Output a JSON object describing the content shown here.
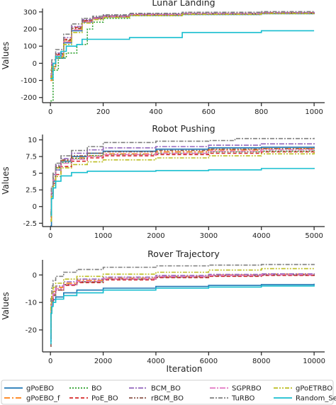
{
  "xlabel": "Iteration",
  "colors": {
    "gPoEBO": "#1f77b4",
    "gPoEBO_f": "#ff7f0e",
    "BO": "#2ca02c",
    "PoE_BO": "#d62728",
    "BCM_BO": "#9467bd",
    "rBCM_BO": "#8c564b",
    "SGPRBO": "#e377c2",
    "TuRBO": "#7f7f7f",
    "gPoETRBO": "#bcbd22",
    "Random_Search": "#17becf"
  },
  "legend": {
    "columns": [
      [
        "gPoEBO",
        "gPoEBO_f"
      ],
      [
        "BO",
        "PoE_BO"
      ],
      [
        "BCM_BO",
        "rBCM_BO"
      ],
      [
        "SGPRBO",
        "TuRBO"
      ],
      [
        "gPoETRBO",
        "Random_Search"
      ]
    ],
    "dash": {
      "gPoEBO": "",
      "gPoEBO_f": "8,3,2,3",
      "BO": "2,2",
      "PoE_BO": "5,3",
      "BCM_BO": "7,2,2,2",
      "rBCM_BO": "5,2,2,2,2,2",
      "SGPRBO": "8,2,2,2",
      "TuRBO": "6,2,2,2",
      "gPoETRBO": "6,2,2,2,2,2",
      "Random_Search": ""
    }
  },
  "chart_data": [
    {
      "type": "line",
      "title": "Lunar Landing",
      "xlabel": "",
      "ylabel": "Values",
      "xlim": [
        -30,
        1040
      ],
      "ylim": [
        -230,
        320
      ],
      "xticks": [
        0,
        200,
        400,
        600,
        800,
        1000
      ],
      "yticks": [
        -200,
        -100,
        0,
        100,
        200,
        300
      ],
      "series": [
        {
          "name": "gPoEBO",
          "x": [
            0,
            5,
            20,
            50,
            80,
            120,
            160,
            200,
            300,
            500,
            800,
            1000
          ],
          "y": [
            -90,
            -20,
            30,
            120,
            190,
            240,
            260,
            270,
            280,
            285,
            290,
            295
          ]
        },
        {
          "name": "gPoEBO_f",
          "x": [
            0,
            5,
            20,
            50,
            80,
            120,
            160,
            200,
            300,
            500,
            800,
            1000
          ],
          "y": [
            -100,
            -30,
            40,
            130,
            200,
            245,
            262,
            272,
            282,
            288,
            292,
            298
          ]
        },
        {
          "name": "BO",
          "x": [
            0,
            10,
            30,
            60,
            100,
            140,
            160,
            200,
            300,
            500,
            800,
            1000
          ],
          "y": [
            -220,
            -40,
            30,
            60,
            110,
            200,
            240,
            262,
            278,
            285,
            290,
            295
          ]
        },
        {
          "name": "PoE_BO",
          "x": [
            0,
            5,
            20,
            50,
            80,
            120,
            160,
            200,
            300,
            500,
            800,
            1000
          ],
          "y": [
            -80,
            -10,
            50,
            140,
            210,
            250,
            265,
            275,
            285,
            290,
            295,
            300
          ]
        },
        {
          "name": "BCM_BO",
          "x": [
            0,
            5,
            20,
            50,
            80,
            120,
            160,
            200,
            300,
            500,
            800,
            1000
          ],
          "y": [
            -60,
            0,
            60,
            150,
            215,
            255,
            268,
            278,
            287,
            292,
            296,
            300
          ]
        },
        {
          "name": "rBCM_BO",
          "x": [
            0,
            5,
            20,
            50,
            80,
            120,
            160,
            200,
            300,
            500,
            800,
            1000
          ],
          "y": [
            -70,
            -5,
            55,
            135,
            205,
            248,
            264,
            275,
            284,
            289,
            294,
            298
          ]
        },
        {
          "name": "SGPRBO",
          "x": [
            0,
            5,
            20,
            50,
            80,
            120,
            160,
            200,
            300,
            500,
            800,
            1000
          ],
          "y": [
            -75,
            0,
            45,
            125,
            195,
            242,
            260,
            272,
            283,
            289,
            293,
            297
          ]
        },
        {
          "name": "TuRBO",
          "x": [
            0,
            5,
            20,
            50,
            80,
            120,
            160,
            200,
            300,
            500,
            800,
            1000
          ],
          "y": [
            -40,
            20,
            80,
            170,
            230,
            262,
            275,
            283,
            292,
            298,
            302,
            306
          ]
        },
        {
          "name": "gPoETRBO",
          "x": [
            0,
            5,
            20,
            50,
            80,
            120,
            160,
            200,
            300,
            500,
            800,
            1000
          ],
          "y": [
            -85,
            -20,
            35,
            110,
            180,
            235,
            255,
            268,
            279,
            286,
            291,
            296
          ]
        },
        {
          "name": "Random_Search",
          "x": [
            0,
            10,
            20,
            40,
            60,
            100,
            120,
            200,
            300,
            500,
            800,
            1000
          ],
          "y": [
            -90,
            0,
            40,
            70,
            100,
            110,
            140,
            140,
            150,
            180,
            190,
            190
          ]
        }
      ]
    },
    {
      "type": "line",
      "title": "Robot Pushing",
      "xlabel": "",
      "ylabel": "Values",
      "xlim": [
        -150,
        5200
      ],
      "ylim": [
        -3,
        10.8
      ],
      "xticks": [
        0,
        1000,
        2000,
        3000,
        4000,
        5000
      ],
      "yticks": [
        -2.5,
        0.0,
        2.5,
        5.0,
        7.5,
        10.0
      ],
      "series": [
        {
          "name": "gPoEBO",
          "x": [
            0,
            20,
            50,
            100,
            200,
            400,
            700,
            1000,
            2000,
            3000,
            4000,
            5000
          ],
          "y": [
            -2.9,
            1.5,
            3.8,
            5.5,
            6.8,
            7.5,
            8.0,
            8.3,
            8.6,
            8.8,
            8.9,
            9.0
          ]
        },
        {
          "name": "gPoEBO_f",
          "x": [
            0,
            20,
            50,
            100,
            200,
            400,
            700,
            1000,
            2000,
            3000,
            4000,
            5000
          ],
          "y": [
            -2.0,
            2.0,
            4.0,
            5.8,
            6.9,
            7.3,
            7.6,
            7.9,
            8.2,
            8.5,
            8.7,
            8.8
          ]
        },
        {
          "name": "BO",
          "x": [
            0,
            20,
            50,
            100,
            200,
            400,
            700,
            1000,
            2000,
            3000,
            4000,
            5000
          ],
          "y": [
            -1.0,
            2.5,
            4.2,
            5.8,
            6.6,
            7.2,
            7.6,
            7.8,
            8.0,
            8.2,
            8.3,
            8.5
          ]
        },
        {
          "name": "PoE_BO",
          "x": [
            0,
            20,
            50,
            100,
            200,
            400,
            700,
            1000,
            2000,
            3000,
            4000,
            5000
          ],
          "y": [
            -1.2,
            2.0,
            3.5,
            4.8,
            6.0,
            6.8,
            7.3,
            7.6,
            7.8,
            8.0,
            8.2,
            8.3
          ]
        },
        {
          "name": "BCM_BO",
          "x": [
            0,
            20,
            50,
            100,
            200,
            400,
            700,
            1000,
            2000,
            3000,
            4000,
            5000
          ],
          "y": [
            -0.5,
            3.0,
            4.8,
            6.2,
            7.2,
            8.0,
            8.5,
            8.8,
            9.0,
            9.2,
            9.4,
            9.6
          ]
        },
        {
          "name": "rBCM_BO",
          "x": [
            0,
            20,
            50,
            100,
            200,
            400,
            700,
            1000,
            2000,
            3000,
            4000,
            5000
          ],
          "y": [
            -0.8,
            2.8,
            4.5,
            6.0,
            7.0,
            7.6,
            8.0,
            8.2,
            8.4,
            8.6,
            8.7,
            8.8
          ]
        },
        {
          "name": "SGPRBO",
          "x": [
            0,
            20,
            50,
            100,
            200,
            400,
            700,
            1000,
            2000,
            3000,
            4000,
            5000
          ],
          "y": [
            -0.5,
            2.2,
            4.0,
            5.5,
            6.5,
            7.1,
            7.5,
            7.8,
            8.0,
            8.3,
            8.5,
            8.7
          ]
        },
        {
          "name": "TuRBO",
          "x": [
            0,
            20,
            50,
            100,
            200,
            400,
            700,
            1000,
            2000,
            3000,
            3500,
            5000
          ],
          "y": [
            -1.5,
            3.0,
            5.0,
            6.5,
            7.6,
            8.4,
            9.0,
            9.6,
            9.8,
            9.9,
            10.2,
            10.3
          ]
        },
        {
          "name": "gPoETRBO",
          "x": [
            0,
            20,
            50,
            100,
            200,
            400,
            700,
            1000,
            2000,
            3000,
            4000,
            5000
          ],
          "y": [
            -2.2,
            1.5,
            3.2,
            4.5,
            5.8,
            6.3,
            6.7,
            7.0,
            7.3,
            7.6,
            7.9,
            8.1
          ]
        },
        {
          "name": "Random_Search",
          "x": [
            0,
            20,
            50,
            100,
            200,
            400,
            700,
            1000,
            2000,
            3000,
            4000,
            5000
          ],
          "y": [
            -1.3,
            1.2,
            2.8,
            3.8,
            4.6,
            5.1,
            5.3,
            5.3,
            5.4,
            5.5,
            5.7,
            5.8
          ]
        }
      ]
    },
    {
      "type": "line",
      "title": "Rover Trajectory",
      "xlabel": "Iteration",
      "ylabel": "Values",
      "xlim": [
        -300,
        10400
      ],
      "ylim": [
        -28,
        5.5
      ],
      "xticks": [
        0,
        2000,
        4000,
        6000,
        8000,
        10000
      ],
      "xticklabels": [
        "0",
        "2000",
        "4000",
        "6000",
        "8000",
        "10000"
      ],
      "yticks": [
        -20,
        -10,
        0
      ],
      "series": [
        {
          "name": "gPoEBO",
          "x": [
            0,
            20,
            50,
            100,
            200,
            500,
            1000,
            2000,
            4000,
            6000,
            8000,
            10000
          ],
          "y": [
            -24,
            -14,
            -11,
            -9,
            -8,
            -6.5,
            -5.5,
            -4.8,
            -4.2,
            -3.8,
            -3.5,
            -3.2
          ]
        },
        {
          "name": "gPoEBO_f",
          "x": [
            0,
            20,
            50,
            100,
            200,
            500,
            1000,
            2000,
            4000,
            6000,
            8000,
            10000
          ],
          "y": [
            -22,
            -12,
            -8,
            -6,
            -4.5,
            -3,
            -2,
            -1.2,
            -0.5,
            0,
            0.3,
            0.5
          ]
        },
        {
          "name": "BO",
          "x": [
            0,
            20,
            50,
            100,
            200,
            500,
            1000,
            2000,
            4000,
            6000,
            8000,
            10000
          ],
          "y": [
            -21,
            -13,
            -9,
            -7,
            -5,
            -3.5,
            -2.5,
            -1.5,
            -0.8,
            -0.3,
            0,
            0.2
          ]
        },
        {
          "name": "PoE_BO",
          "x": [
            0,
            20,
            50,
            100,
            200,
            500,
            1000,
            2000,
            4000,
            6000,
            8000,
            10000
          ],
          "y": [
            -23,
            -12,
            -9,
            -7,
            -5.5,
            -3.8,
            -2.8,
            -1.8,
            -1,
            -0.5,
            -0.2,
            0
          ]
        },
        {
          "name": "BCM_BO",
          "x": [
            0,
            20,
            50,
            100,
            200,
            500,
            1000,
            2000,
            4000,
            6000,
            8000,
            10000
          ],
          "y": [
            -20,
            -11,
            -8,
            -6,
            -4,
            -2.5,
            -1.5,
            -0.8,
            -0.2,
            0.2,
            0.4,
            0.6
          ]
        },
        {
          "name": "rBCM_BO",
          "x": [
            0,
            20,
            50,
            100,
            200,
            500,
            1000,
            2000,
            4000,
            6000,
            8000,
            10000
          ],
          "y": [
            -26,
            -13,
            -9.5,
            -7.5,
            -5.5,
            -3.5,
            -2.5,
            -1.5,
            -0.8,
            -0.3,
            0,
            0.2
          ]
        },
        {
          "name": "SGPRBO",
          "x": [
            0,
            20,
            50,
            100,
            200,
            500,
            1000,
            2000,
            4000,
            6000,
            8000,
            10000
          ],
          "y": [
            -22,
            -12.5,
            -9,
            -7,
            -5,
            -3.5,
            -2.3,
            -1.4,
            -0.6,
            -0.2,
            0.1,
            0.3
          ]
        },
        {
          "name": "TuRBO",
          "x": [
            0,
            20,
            50,
            100,
            200,
            500,
            1000,
            2000,
            4000,
            6000,
            8000,
            10000
          ],
          "y": [
            -19,
            -8,
            -4,
            -2,
            -0.5,
            1,
            2,
            2.8,
            3.3,
            3.6,
            3.8,
            4.0
          ]
        },
        {
          "name": "gPoETRBO",
          "x": [
            0,
            20,
            50,
            100,
            200,
            500,
            1000,
            2000,
            4000,
            6000,
            8000,
            10000
          ],
          "y": [
            -21,
            -10,
            -6.5,
            -4.5,
            -3,
            -1.5,
            -0.5,
            0.3,
            1,
            1.8,
            2.3,
            2.6
          ]
        },
        {
          "name": "Random_Search",
          "x": [
            0,
            20,
            50,
            100,
            200,
            500,
            1000,
            2000,
            4000,
            6000,
            8000,
            10000
          ],
          "y": [
            -25,
            -14,
            -11.5,
            -10,
            -8.8,
            -7.5,
            -6.5,
            -5.5,
            -4.8,
            -4.4,
            -4.0,
            -3.7
          ]
        }
      ]
    }
  ]
}
